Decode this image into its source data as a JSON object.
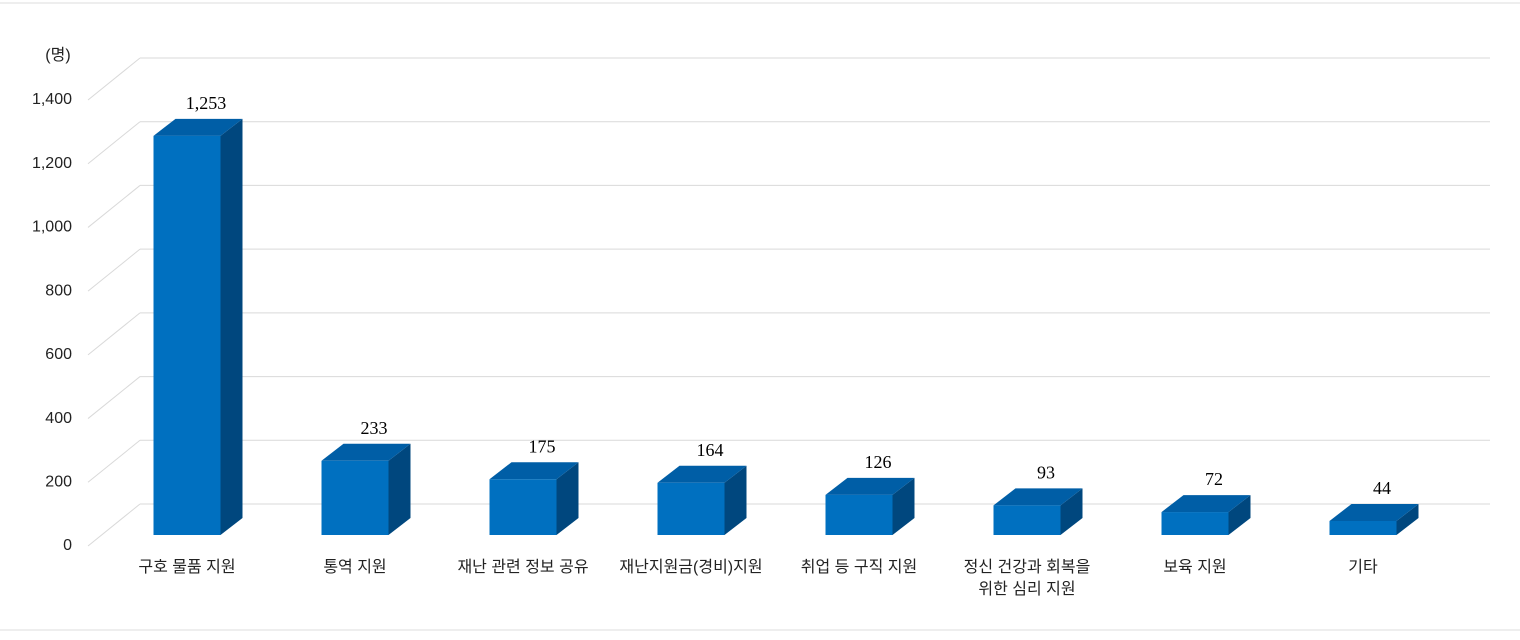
{
  "chart_data": {
    "type": "bar3d",
    "y_unit": "(명)",
    "categories": [
      "구호 물품 지원",
      "통역 지원",
      "재난 관련 정보 공유",
      "재난지원금(경비)지원",
      "취업 등 구직 지원",
      "정신 건강과 회복을\n위한 심리 지원",
      "보육 지원",
      "기타"
    ],
    "values": [
      1253,
      233,
      175,
      164,
      126,
      93,
      72,
      44
    ],
    "value_labels": [
      "1,253",
      "233",
      "175",
      "164",
      "126",
      "93",
      "72",
      "44"
    ],
    "color": "#0070c0",
    "ylim": [
      0,
      1400
    ],
    "yticks": [
      0,
      200,
      400,
      600,
      800,
      {
        "value": 1000,
        "label": "1,000"
      },
      {
        "value": 1200,
        "label": "1,200"
      },
      {
        "value": 1400,
        "label": "1,400"
      }
    ],
    "grid": true
  }
}
